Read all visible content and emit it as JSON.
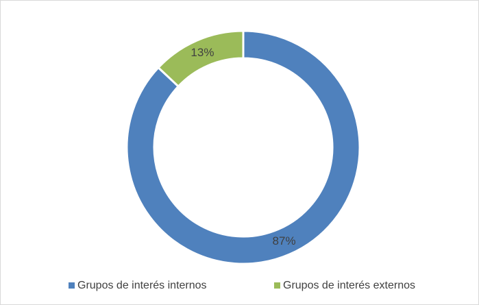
{
  "chart_data": {
    "type": "donut",
    "categories": [
      "Grupos de interés internos",
      "Grupos de interés externos"
    ],
    "values": [
      87,
      13
    ],
    "value_labels": [
      "87%",
      "13%"
    ],
    "colors": [
      "#4f81bd",
      "#9bbb59"
    ]
  }
}
